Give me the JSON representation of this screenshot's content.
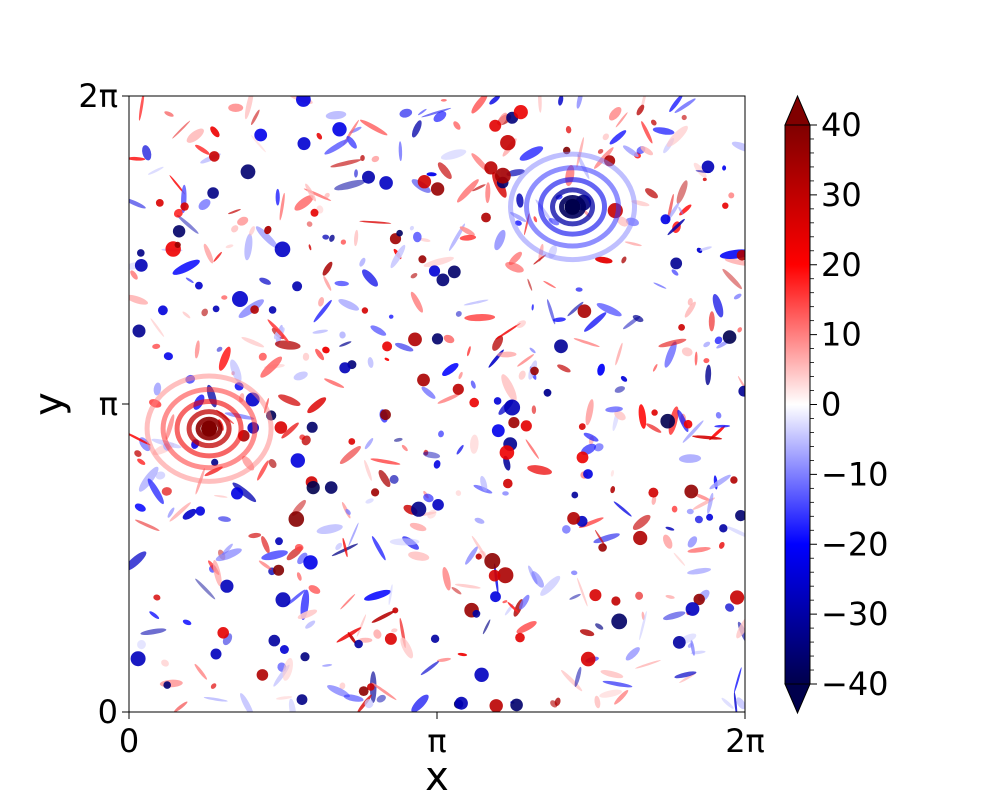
{
  "chart_data": {
    "type": "heatmap",
    "title": "",
    "xlabel": "x",
    "ylabel": "y",
    "xlim": [
      "0",
      "2π"
    ],
    "ylim": [
      "0",
      "2π"
    ],
    "x_ticks": [
      {
        "value": 0,
        "label": "0"
      },
      {
        "value": 0.5,
        "label": "π"
      },
      {
        "value": 1,
        "label": "2π"
      }
    ],
    "y_ticks": [
      {
        "value": 0,
        "label": "0"
      },
      {
        "value": 0.5,
        "label": "π"
      },
      {
        "value": 1,
        "label": "2π"
      }
    ],
    "colormap": "seismic",
    "colorbar": {
      "min": -40,
      "max": 40,
      "extend": "both",
      "ticks": [
        {
          "value": 40,
          "label": "40"
        },
        {
          "value": 30,
          "label": "30"
        },
        {
          "value": 20,
          "label": "20"
        },
        {
          "value": 10,
          "label": "10"
        },
        {
          "value": 0,
          "label": "0"
        },
        {
          "value": -10,
          "label": "−10"
        },
        {
          "value": -20,
          "label": "−20"
        },
        {
          "value": -30,
          "label": "−30"
        },
        {
          "value": -40,
          "label": "−40"
        }
      ],
      "colors": {
        "extreme_low": "#00004c",
        "low": "#0000ff",
        "mid": "#ffffff",
        "high": "#ff0000",
        "extreme_high": "#800000"
      }
    },
    "vortices": [
      {
        "x": 0.72,
        "y": 0.82,
        "value": -40
      },
      {
        "x": 0.13,
        "y": 0.46,
        "value": 40
      }
    ],
    "grid": false
  }
}
